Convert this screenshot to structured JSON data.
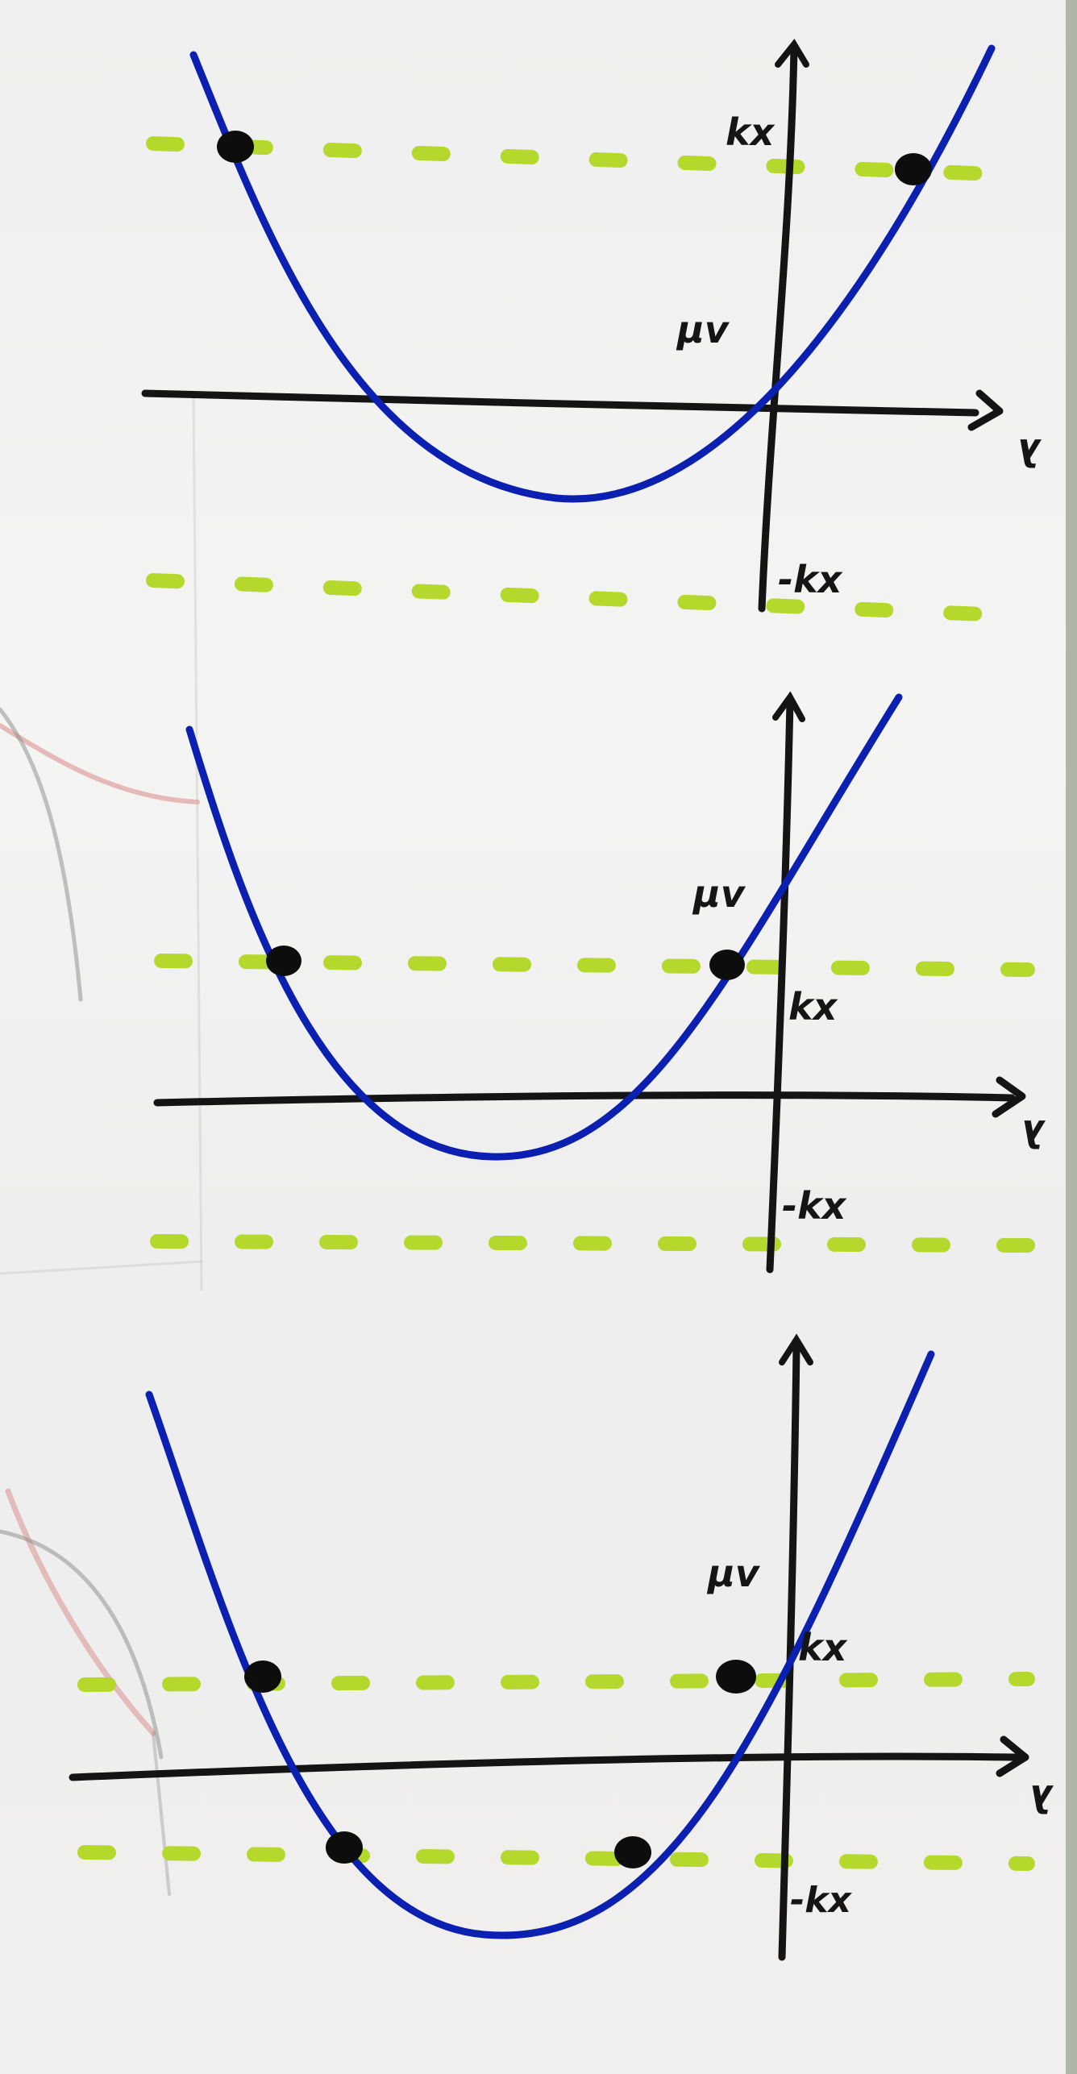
{
  "colors": {
    "paper": "#f1f1f0",
    "curve": "#0b1fb0",
    "axis": "#141414",
    "dashes": "#b5d82c",
    "points": "#0d0d0d",
    "pencil_red": "#d88888",
    "pencil_grey": "#8a8a8a"
  },
  "panels": [
    {
      "id": "top",
      "labels": {
        "upper": "kx",
        "intercept": "μv",
        "lower": "-kx",
        "axis": "λ"
      },
      "intersections_with_upper": 2,
      "intersections_with_lower": 0
    },
    {
      "id": "middle",
      "labels": {
        "upper": "kx",
        "intercept": "μv",
        "lower": "-kx",
        "axis": "λ"
      },
      "intersections_with_upper": 2,
      "intersections_with_lower": 0
    },
    {
      "id": "bottom",
      "labels": {
        "upper": "kx",
        "intercept": "μv",
        "lower": "-kx",
        "axis": "λ"
      },
      "intersections_with_upper": 2,
      "intersections_with_lower": 2
    }
  ]
}
